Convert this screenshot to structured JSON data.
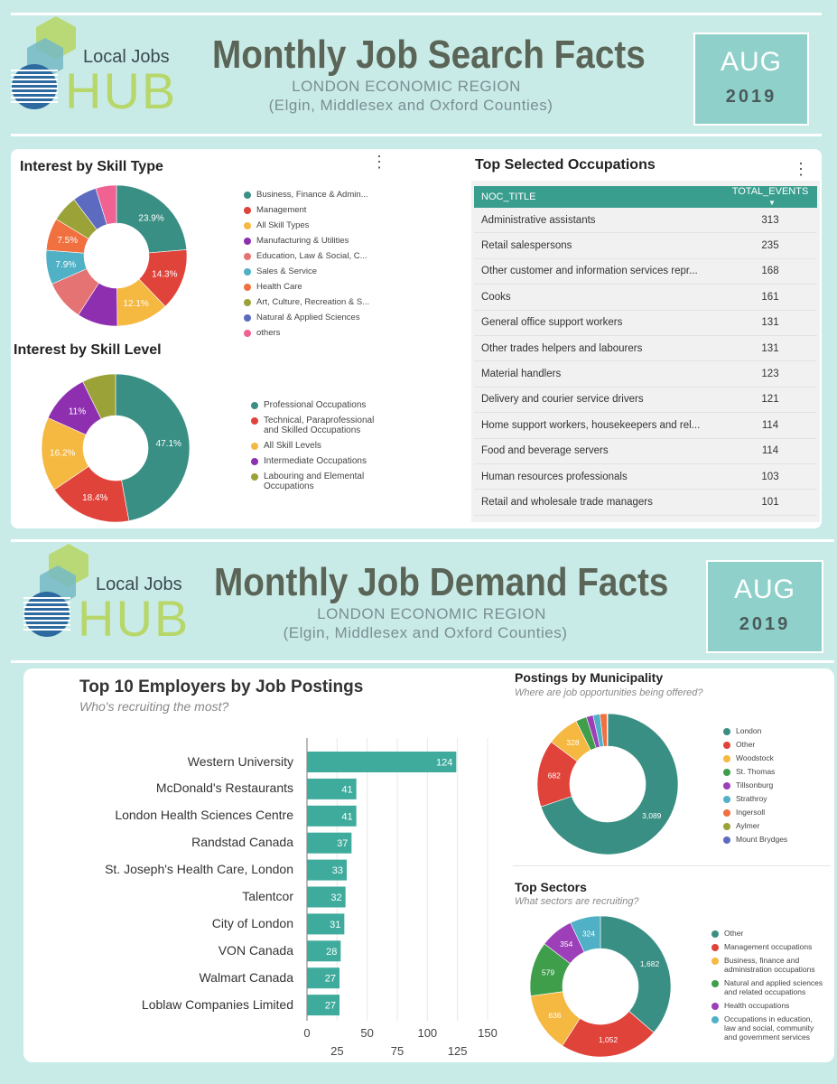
{
  "search_header": {
    "logo_local": "Local Jobs",
    "logo_hub": "HUB",
    "title": "Monthly Job Search Facts",
    "region": "LONDON ECONOMIC REGION",
    "counties": "(Elgin, Middlesex and Oxford Counties)",
    "month": "AUG",
    "year": "2019"
  },
  "demand_header": {
    "logo_local": "Local Jobs",
    "logo_hub": "HUB",
    "title": "Monthly Job Demand Facts",
    "region": "LONDON ECONOMIC REGION",
    "counties": "(Elgin, Middlesex and Oxford Counties)",
    "month": "AUG",
    "year": "2019"
  },
  "skill_type": {
    "title": "Interest by Skill Type",
    "legend": [
      {
        "label": "Business, Finance & Admin...",
        "color": "#3a8f84"
      },
      {
        "label": "Management",
        "color": "#e0433a"
      },
      {
        "label": "All Skill Types",
        "color": "#f5b841"
      },
      {
        "label": "Manufacturing & Utilities",
        "color": "#8e2fb0"
      },
      {
        "label": "Education, Law & Social, C...",
        "color": "#e57373"
      },
      {
        "label": "Sales & Service",
        "color": "#4fb0c6"
      },
      {
        "label": "Health Care",
        "color": "#f07040"
      },
      {
        "label": "Art, Culture, Recreation & S...",
        "color": "#9aa238"
      },
      {
        "label": "Natural & Applied Sciences",
        "color": "#5c6bc0"
      },
      {
        "label": "others",
        "color": "#f06292"
      }
    ]
  },
  "skill_level": {
    "title": "Interest by Skill Level",
    "legend": [
      {
        "label": "Professional Occupations",
        "color": "#3a8f84"
      },
      {
        "label": "Technical, Paraprofessional and Skilled Occupations",
        "color": "#e0433a"
      },
      {
        "label": "All Skill Levels",
        "color": "#f5b841"
      },
      {
        "label": "Intermediate Occupations",
        "color": "#8e2fb0"
      },
      {
        "label": "Labouring and Elemental Occupations",
        "color": "#9aa238"
      }
    ]
  },
  "occupations": {
    "title": "Top Selected Occupations",
    "col_title": "NOC_TITLE",
    "col_events": "TOTAL_EVENTS",
    "sort_icon": "sort-down-icon",
    "rows": [
      {
        "title": "Administrative assistants",
        "events": "313"
      },
      {
        "title": "Retail salespersons",
        "events": "235"
      },
      {
        "title": "Other customer and information services repr...",
        "events": "168"
      },
      {
        "title": "Cooks",
        "events": "161"
      },
      {
        "title": "General office support workers",
        "events": "131"
      },
      {
        "title": "Other trades helpers and labourers",
        "events": "131"
      },
      {
        "title": "Material handlers",
        "events": "123"
      },
      {
        "title": "Delivery and courier service drivers",
        "events": "121"
      },
      {
        "title": "Home support workers, housekeepers and rel...",
        "events": "114"
      },
      {
        "title": "Food and beverage servers",
        "events": "114"
      },
      {
        "title": "Human resources professionals",
        "events": "103"
      },
      {
        "title": "Retail and wholesale trade managers",
        "events": "101"
      }
    ]
  },
  "employers": {
    "title": "Top 10 Employers by Job Postings",
    "subtitle": "Who's recruiting the most?"
  },
  "municipality": {
    "title": "Postings by Municipality",
    "subtitle": "Where are job opportunities being offered?",
    "legend": [
      {
        "label": "London",
        "color": "#3a8f84"
      },
      {
        "label": "Other",
        "color": "#e0433a"
      },
      {
        "label": "Woodstock",
        "color": "#f5b841"
      },
      {
        "label": "St. Thomas",
        "color": "#3e9e4a"
      },
      {
        "label": "Tillsonburg",
        "color": "#9c3fb8"
      },
      {
        "label": "Strathroy",
        "color": "#4fb0c6"
      },
      {
        "label": "Ingersoll",
        "color": "#f07040"
      },
      {
        "label": "Aylmer",
        "color": "#9aa238"
      },
      {
        "label": "Mount Brydges",
        "color": "#5c6bc0"
      }
    ]
  },
  "sectors": {
    "title": "Top Sectors",
    "subtitle": "What sectors are recruiting?",
    "legend": [
      {
        "label": "Other",
        "color": "#3a8f84"
      },
      {
        "label": "Management occupations",
        "color": "#e0433a"
      },
      {
        "label": "Business, finance and administration occupations",
        "color": "#f5b841"
      },
      {
        "label": "Natural and applied sciences and related occupations",
        "color": "#3e9e4a"
      },
      {
        "label": "Health occupations",
        "color": "#9c3fb8"
      },
      {
        "label": "Occupations in education, law and social, community and government services",
        "color": "#4fb0c6"
      }
    ]
  },
  "chart_data": [
    {
      "type": "pie",
      "title": "Interest by Skill Type",
      "categories": [
        "Business, Finance & Admin...",
        "Management",
        "All Skill Types",
        "Manufacturing & Utilities",
        "Education, Law & Social, C...",
        "Sales & Service",
        "Health Care",
        "Art, Culture, Recreation & S...",
        "Natural & Applied Sciences",
        "others"
      ],
      "values": [
        23.9,
        14.3,
        12.1,
        9.4,
        9.4,
        7.9,
        7.5,
        6.1,
        5.6,
        4.8
      ],
      "labels": [
        "23.9%",
        "14.3%",
        "12.1%",
        "",
        "",
        "7.9%",
        "7.5%",
        "",
        "",
        ""
      ]
    },
    {
      "type": "pie",
      "title": "Interest by Skill Level",
      "categories": [
        "Professional Occupations",
        "Technical, Paraprofessional and Skilled Occupations",
        "All Skill Levels",
        "Intermediate Occupations",
        "Labouring and Elemental Occupations"
      ],
      "values": [
        47.1,
        18.4,
        16.2,
        11,
        7.3
      ],
      "labels": [
        "47.1%",
        "18.4%",
        "16.2%",
        "11%",
        ""
      ]
    },
    {
      "type": "bar",
      "title": "Top 10 Employers by Job Postings",
      "categories": [
        "Western University",
        "McDonald's Restaurants",
        "London Health Sciences Centre",
        "Randstad Canada",
        "St. Joseph's Health Care, London",
        "Talentcor",
        "City of London",
        "VON Canada",
        "Walmart Canada",
        "Loblaw Companies Limited"
      ],
      "values": [
        124,
        41,
        41,
        37,
        33,
        32,
        31,
        28,
        27,
        27
      ],
      "xlim": [
        0,
        150
      ],
      "xticks_top": [
        "0",
        "50",
        "100",
        "150"
      ],
      "xticks_bottom": [
        "25",
        "75",
        "125"
      ]
    },
    {
      "type": "pie",
      "title": "Postings by Municipality",
      "categories": [
        "London",
        "Other",
        "Woodstock",
        "St. Thomas",
        "Tillsonburg",
        "Strathroy",
        "Ingersoll",
        "Aylmer",
        "Mount Brydges"
      ],
      "values": [
        3089,
        682,
        328,
        110,
        70,
        70,
        70,
        5,
        2
      ],
      "labels": [
        "3,089",
        "682",
        "328",
        "",
        "",
        "",
        "",
        "",
        ""
      ]
    },
    {
      "type": "pie",
      "title": "Top Sectors",
      "categories": [
        "Other",
        "Management occupations",
        "Business, finance and administration occupations",
        "Natural and applied sciences and related occupations",
        "Health occupations",
        "Occupations in education, law and social, community and government services"
      ],
      "values": [
        1682,
        1052,
        636,
        579,
        354,
        324
      ],
      "labels": [
        "1,682",
        "1,052",
        "636",
        "579",
        "354",
        "324"
      ]
    }
  ]
}
